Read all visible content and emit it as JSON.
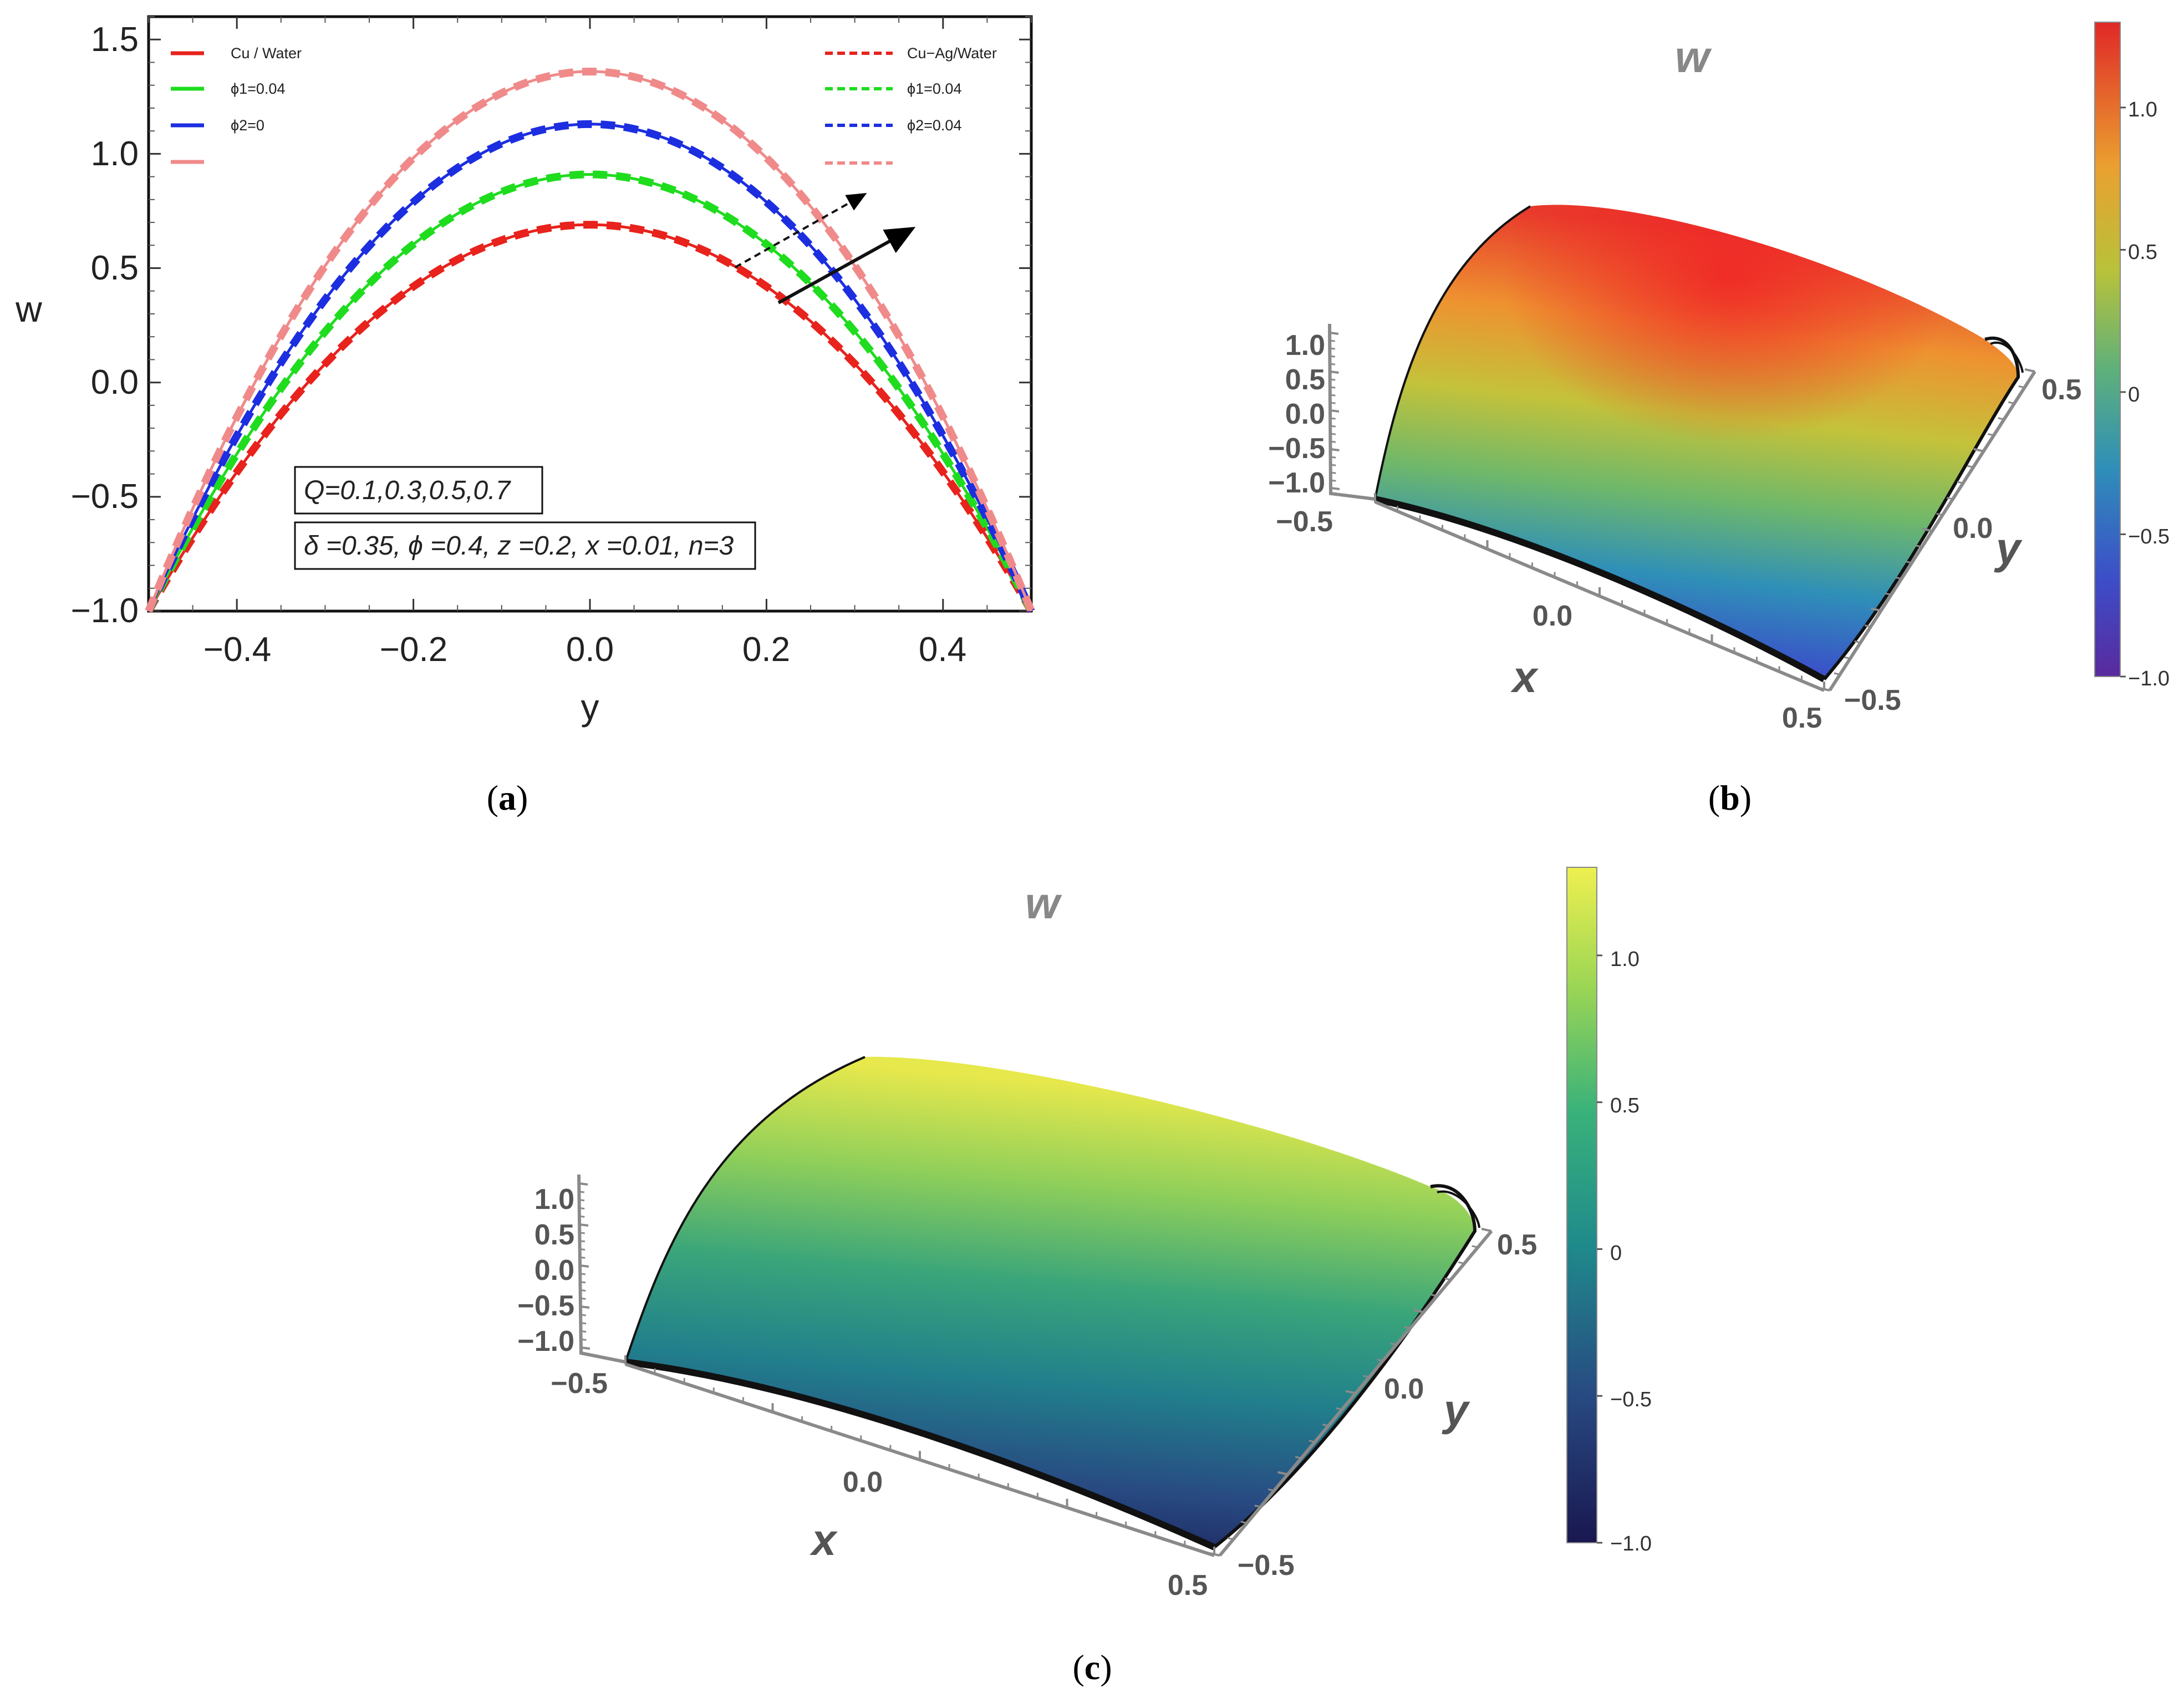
{
  "captions": {
    "a": "a",
    "b": "b",
    "c": "c"
  },
  "chart_data": [
    {
      "type": "line",
      "panel": "a",
      "xlabel": "y",
      "ylabel": "w",
      "xlim": [
        -0.5,
        0.5
      ],
      "ylim": [
        -1.0,
        1.6
      ],
      "xticks": [
        "−0.4",
        "−0.2",
        "0.0",
        "0.2",
        "0.4"
      ],
      "xtick_values": [
        -0.4,
        -0.2,
        0.0,
        0.2,
        0.4
      ],
      "yticks": [
        "−1.0",
        "−0.5",
        "0.0",
        "0.5",
        "1.0",
        "1.5"
      ],
      "ytick_values": [
        -1.0,
        -0.5,
        0.0,
        0.5,
        1.0,
        1.5
      ],
      "legend_left": [
        {
          "label": "Cu / Water",
          "color": "#e8221c",
          "style": "solid"
        },
        {
          "label": "ϕ1=0.04",
          "color": "#1fdc1f",
          "style": "solid"
        },
        {
          "label": "ϕ2=0",
          "color": "#1c2ee0",
          "style": "solid"
        },
        {
          "label": "",
          "color": "#f08a8a",
          "style": "solid"
        }
      ],
      "legend_right": [
        {
          "label": "Cu−Ag/Water",
          "color": "#e8221c",
          "style": "dashed"
        },
        {
          "label": "ϕ1=0.04",
          "color": "#1fdc1f",
          "style": "dashed"
        },
        {
          "label": "ϕ2=0.04",
          "color": "#1c2ee0",
          "style": "dashed"
        },
        {
          "label": "",
          "color": "#f08a8a",
          "style": "dashed"
        }
      ],
      "annotations": [
        "Q=0.1,0.3,0.5,0.7",
        "δ =0.35, ϕ =0.4, z =0.2, x =0.01, n=3"
      ],
      "series": [
        {
          "Q": 0.1,
          "color": "#e8221c",
          "x_end": [
            -0.5,
            0.5
          ],
          "y_end": -1.0,
          "peak": 0.69
        },
        {
          "Q": 0.3,
          "color": "#1fdc1f",
          "x_end": [
            -0.5,
            0.5
          ],
          "y_end": -1.0,
          "peak": 0.91
        },
        {
          "Q": 0.5,
          "color": "#1c2ee0",
          "x_end": [
            -0.5,
            0.5
          ],
          "y_end": -1.0,
          "peak": 1.13
        },
        {
          "Q": 0.7,
          "color": "#f08a8a",
          "x_end": [
            -0.5,
            0.5
          ],
          "y_end": -1.0,
          "peak": 1.36
        }
      ]
    },
    {
      "type": "surface",
      "panel": "b",
      "title": "w",
      "xlabel": "x",
      "ylabel": "y",
      "z_ticks": [
        "1.0",
        "0.5",
        "0.0",
        "−0.5",
        "−1.0"
      ],
      "x_ticks": [
        "−0.5",
        "0.0",
        "0.5"
      ],
      "y_ticks": [
        "0.5",
        "0.0",
        "−0.5"
      ],
      "colormap": "rainbow",
      "colorbar_ticks": [
        "1.0",
        "0.5",
        "0",
        "−0.5",
        "−1.0"
      ],
      "colorbar_values": [
        1.0,
        0.5,
        0.0,
        -0.5,
        -1.0
      ],
      "colorbar_range": [
        -1.0,
        1.3
      ]
    },
    {
      "type": "surface",
      "panel": "c",
      "title": "w",
      "xlabel": "x",
      "ylabel": "y",
      "z_ticks": [
        "1.0",
        "0.5",
        "0.0",
        "−0.5",
        "−1.0"
      ],
      "x_ticks": [
        "−0.5",
        "0.0",
        "0.5"
      ],
      "y_ticks": [
        "0.5",
        "0.0",
        "−0.5"
      ],
      "colormap": "viridis",
      "colorbar_ticks": [
        "1.0",
        "0.5",
        "0",
        "−0.5",
        "−1.0"
      ],
      "colorbar_values": [
        1.0,
        0.5,
        0.0,
        -0.5,
        -1.0
      ],
      "colorbar_range": [
        -1.0,
        1.3
      ]
    }
  ]
}
